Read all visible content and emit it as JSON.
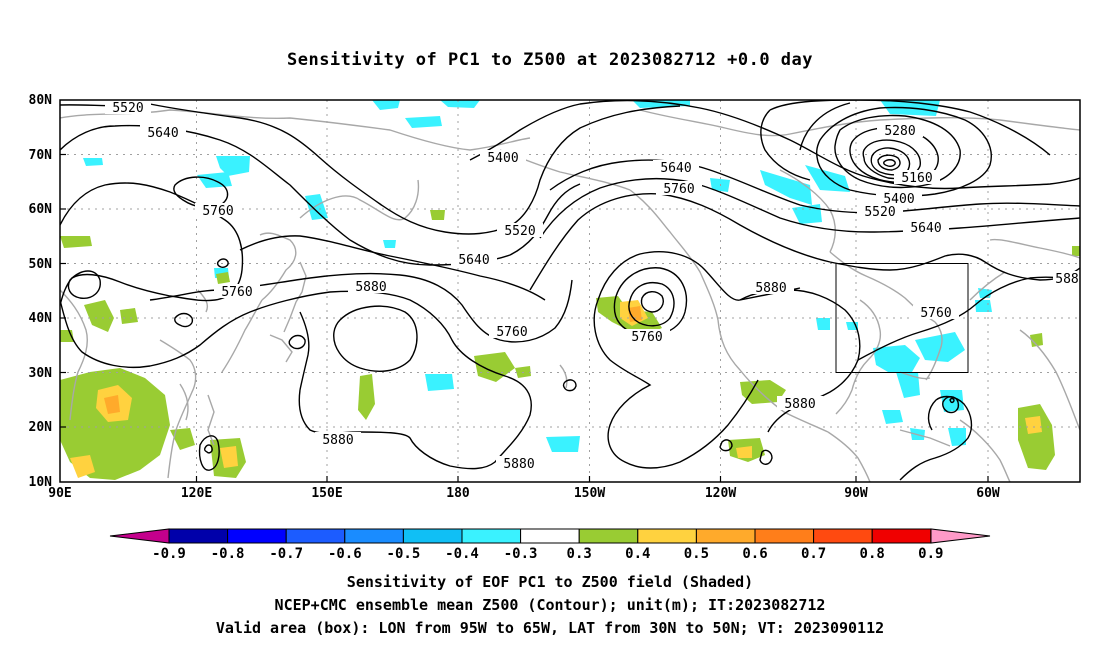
{
  "title": "Sensitivity of PC1 to Z500 at 2023082712 +0.0 day",
  "map": {
    "lat_ticks": [
      "80N",
      "70N",
      "60N",
      "50N",
      "40N",
      "30N",
      "20N",
      "10N"
    ],
    "lon_ticks": [
      "90E",
      "120E",
      "150E",
      "180",
      "150W",
      "120W",
      "90W",
      "60W"
    ],
    "contour_labels": [
      {
        "text": "5520"
      },
      {
        "text": "5640"
      },
      {
        "text": "5760"
      },
      {
        "text": "5400"
      },
      {
        "text": "5520"
      },
      {
        "text": "5640"
      },
      {
        "text": "5760"
      },
      {
        "text": "5880"
      },
      {
        "text": "5760"
      },
      {
        "text": "5640"
      },
      {
        "text": "5760"
      },
      {
        "text": "5880"
      },
      {
        "text": "5880"
      },
      {
        "text": "5880"
      },
      {
        "text": "5880"
      },
      {
        "text": "5280"
      },
      {
        "text": "5160"
      },
      {
        "text": "5400"
      },
      {
        "text": "5520"
      },
      {
        "text": "5640"
      },
      {
        "text": "5760"
      },
      {
        "text": "588"
      },
      {
        "text": "5880"
      }
    ],
    "box": {
      "lon_from": "95W",
      "lon_to": "65W",
      "lat_from": "30N",
      "lat_to": "50N"
    }
  },
  "colorbar": {
    "labels": [
      "-0.9",
      "-0.8",
      "-0.7",
      "-0.6",
      "-0.5",
      "-0.4",
      "-0.3",
      "0.3",
      "0.4",
      "0.5",
      "0.6",
      "0.7",
      "0.8",
      "0.9"
    ],
    "colors": [
      "#0000aa",
      "#0000ff",
      "#1c5cff",
      "#1a8cff",
      "#10bff5",
      "#3af2ff",
      "#ffffff",
      "#99cc33",
      "#ffd23f",
      "#ffaa2b",
      "#ff7e1a",
      "#ff4a10",
      "#f00000"
    ],
    "left_arrow_color": "#c4008c",
    "right_arrow_color": "#ff9ac8"
  },
  "captions": [
    "Sensitivity of EOF PC1 to Z500 field (Shaded)",
    "NCEP+CMC ensemble mean Z500 (Contour); unit(m); IT:2023082712",
    "Valid area (box): LON from 95W to 65W, LAT from 30N to 50N; VT: 2023090112"
  ]
}
